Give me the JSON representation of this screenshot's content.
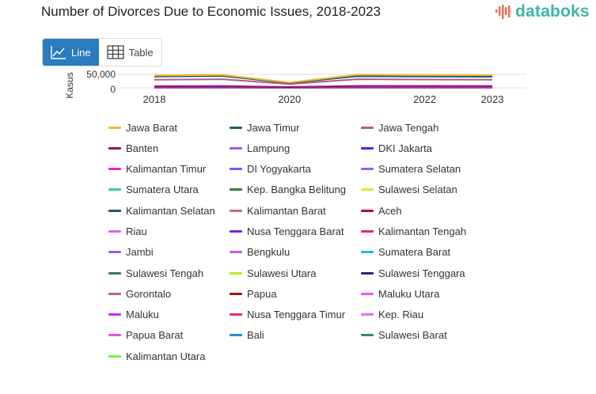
{
  "title": "Number of Divorces Due to Economic Issues, 2018-2023",
  "logo": {
    "text": "databoks",
    "colors": [
      "#ef6c4a",
      "#3fb4a6"
    ]
  },
  "toggle": {
    "line_label": "Line",
    "table_label": "Table",
    "active": "Line",
    "accent": "#2b7bbd"
  },
  "chart_data": {
    "type": "line",
    "title": "Number of Divorces Due to Economic Issues, 2018-2023",
    "ylabel": "Kasus",
    "xlabel": "",
    "x": [
      2018,
      2019,
      2020,
      2021,
      2022,
      2023
    ],
    "x_ticks": [
      "2018",
      "2020",
      "2022",
      "2023"
    ],
    "y_ticks": [
      "0",
      "50,000"
    ],
    "ylim": [
      0,
      50000
    ],
    "grid": true,
    "legend": "bottom",
    "series": [
      {
        "name": "Jawa Barat",
        "color": "#f5b731",
        "values": [
          46000,
          48000,
          20000,
          49000,
          48000,
          47000
        ]
      },
      {
        "name": "Jawa Timur",
        "color": "#1f5f6b",
        "values": [
          42000,
          44000,
          18000,
          43000,
          42000,
          41000
        ]
      },
      {
        "name": "Jawa Tengah",
        "color": "#b05a8f",
        "values": [
          30000,
          32000,
          14000,
          32000,
          31000,
          30000
        ]
      },
      {
        "name": "Banten",
        "color": "#9a1458",
        "values": [
          6000,
          6500,
          3000,
          7000,
          7000,
          6500
        ]
      },
      {
        "name": "Lampung",
        "color": "#a855f7",
        "values": [
          5000,
          5500,
          2500,
          5800,
          5600,
          5400
        ]
      },
      {
        "name": "DKI Jakarta",
        "color": "#3b2cf0",
        "values": [
          4000,
          4200,
          2000,
          4500,
          4400,
          4300
        ]
      },
      {
        "name": "Kalimantan Timur",
        "color": "#f01fd0",
        "values": [
          2000,
          2100,
          1000,
          2200,
          2100,
          2000
        ]
      },
      {
        "name": "DI Yogyakarta",
        "color": "#7b5cf5",
        "values": [
          1500,
          1600,
          800,
          1700,
          1600,
          1500
        ]
      },
      {
        "name": "Sumatera Selatan",
        "color": "#9b5cf0",
        "values": [
          3000,
          3100,
          1500,
          3300,
          3200,
          3100
        ]
      },
      {
        "name": "Sumatera Utara",
        "color": "#2ad1a3",
        "values": [
          3500,
          3600,
          1700,
          3800,
          3700,
          3600
        ]
      },
      {
        "name": "Kep. Bangka Belitung",
        "color": "#3a7d3a",
        "values": [
          800,
          850,
          400,
          900,
          880,
          850
        ]
      },
      {
        "name": "Sulawesi Selatan",
        "color": "#e6e62a",
        "values": [
          3000,
          3200,
          1500,
          3400,
          3300,
          3200
        ]
      },
      {
        "name": "Kalimantan Selatan",
        "color": "#2a4f75",
        "values": [
          1800,
          1900,
          900,
          2000,
          1950,
          1900
        ]
      },
      {
        "name": "Kalimantan Barat",
        "color": "#c06a85",
        "values": [
          1200,
          1300,
          600,
          1400,
          1350,
          1300
        ]
      },
      {
        "name": "Aceh",
        "color": "#a3123e",
        "values": [
          1500,
          1600,
          800,
          1700,
          1650,
          1600
        ]
      },
      {
        "name": "Riau",
        "color": "#d463ef",
        "values": [
          2000,
          2100,
          1000,
          2200,
          2150,
          2100
        ]
      },
      {
        "name": "Nusa Tenggara Barat",
        "color": "#7a22f0",
        "values": [
          1500,
          1600,
          800,
          1700,
          1650,
          1600
        ]
      },
      {
        "name": "Kalimantan Tengah",
        "color": "#f0208a",
        "values": [
          900,
          950,
          450,
          1000,
          980,
          950
        ]
      },
      {
        "name": "Jambi",
        "color": "#a05cf5",
        "values": [
          1000,
          1050,
          500,
          1100,
          1080,
          1050
        ]
      },
      {
        "name": "Bengkulu",
        "color": "#c45ae8",
        "values": [
          500,
          550,
          250,
          600,
          580,
          550
        ]
      },
      {
        "name": "Sumatera Barat",
        "color": "#1fc2c9",
        "values": [
          1500,
          1600,
          800,
          1700,
          1650,
          1600
        ]
      },
      {
        "name": "Sulawesi Tengah",
        "color": "#3d7d55",
        "values": [
          800,
          850,
          400,
          900,
          880,
          850
        ]
      },
      {
        "name": "Sulawesi Utara",
        "color": "#b2ec2a",
        "values": [
          500,
          550,
          250,
          600,
          580,
          550
        ]
      },
      {
        "name": "Sulawesi Tenggara",
        "color": "#1e2f6b",
        "values": [
          600,
          650,
          300,
          700,
          680,
          650
        ]
      },
      {
        "name": "Gorontalo",
        "color": "#b86b6b",
        "values": [
          300,
          320,
          150,
          350,
          340,
          330
        ]
      },
      {
        "name": "Papua",
        "color": "#9e1414",
        "values": [
          300,
          320,
          150,
          350,
          340,
          330
        ]
      },
      {
        "name": "Maluku Utara",
        "color": "#f05ae8",
        "values": [
          200,
          220,
          100,
          240,
          230,
          220
        ]
      },
      {
        "name": "Maluku",
        "color": "#c030f0",
        "values": [
          250,
          270,
          120,
          290,
          280,
          270
        ]
      },
      {
        "name": "Nusa Tenggara Timur",
        "color": "#e8285a",
        "values": [
          300,
          320,
          150,
          350,
          340,
          330
        ]
      },
      {
        "name": "Kep. Riau",
        "color": "#e870f0",
        "values": [
          700,
          750,
          350,
          800,
          780,
          750
        ]
      },
      {
        "name": "Papua Barat",
        "color": "#f050e0",
        "values": [
          150,
          160,
          80,
          170,
          165,
          160
        ]
      },
      {
        "name": "Bali",
        "color": "#1f8ed1",
        "values": [
          400,
          420,
          200,
          450,
          440,
          430
        ]
      },
      {
        "name": "Sulawesi Barat",
        "color": "#3a8a6a",
        "values": [
          300,
          320,
          150,
          350,
          340,
          330
        ]
      },
      {
        "name": "Kalimantan Utara",
        "color": "#7cf03a",
        "values": [
          150,
          160,
          80,
          170,
          165,
          160
        ]
      }
    ]
  }
}
